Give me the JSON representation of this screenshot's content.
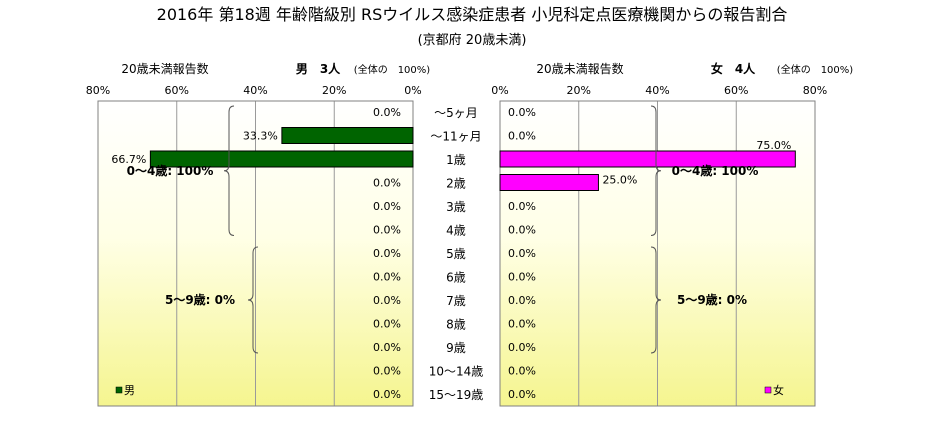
{
  "chart_data": {
    "type": "bar",
    "title": "2016年 第18週 年齢階級別 RSウイルス感染症患者 小児科定点医療機関からの報告割合",
    "subtitle": "(京都府 20歳未満)",
    "categories": [
      "～5ヶ月",
      "～11ヶ月",
      "1歳",
      "2歳",
      "3歳",
      "4歳",
      "5歳",
      "6歳",
      "7歳",
      "8歳",
      "9歳",
      "10～14歳",
      "15～19歳"
    ],
    "xlim": [
      0,
      80
    ],
    "x_unit": "%",
    "x_ticks": [
      "0%",
      "20%",
      "40%",
      "60%",
      "80%"
    ],
    "grid": true,
    "panels": [
      {
        "side": "left",
        "axis_label": "20歳未満報告数",
        "header": "男　3人",
        "header_note": "(全体の　100%)",
        "legend": "男",
        "color": "#006400",
        "values": [
          0,
          33.3,
          66.7,
          0,
          0,
          0,
          0,
          0,
          0,
          0,
          0,
          0,
          0
        ],
        "value_labels": [
          "0.0%",
          "33.3%",
          "66.7%",
          "0.0%",
          "0.0%",
          "0.0%",
          "0.0%",
          "0.0%",
          "0.0%",
          "0.0%",
          "0.0%",
          "0.0%",
          "0.0%"
        ],
        "groups": [
          {
            "label": "0～4歳: 100%",
            "from": 0,
            "to": 5
          },
          {
            "label": "5～9歳: 0%",
            "from": 6,
            "to": 10
          }
        ]
      },
      {
        "side": "right",
        "axis_label": "20歳未満報告数",
        "header": "女　4人",
        "header_note": "(全体の　100%)",
        "legend": "女",
        "color": "#ff00ff",
        "values": [
          0,
          0,
          75.0,
          25.0,
          0,
          0,
          0,
          0,
          0,
          0,
          0,
          0,
          0
        ],
        "value_labels": [
          "0.0%",
          "0.0%",
          "75.0%",
          "25.0%",
          "0.0%",
          "0.0%",
          "0.0%",
          "0.0%",
          "0.0%",
          "0.0%",
          "0.0%",
          "0.0%",
          "0.0%"
        ],
        "groups": [
          {
            "label": "0～4歳: 100%",
            "from": 0,
            "to": 5
          },
          {
            "label": "5～9歳: 0%",
            "from": 6,
            "to": 10
          }
        ]
      }
    ]
  }
}
